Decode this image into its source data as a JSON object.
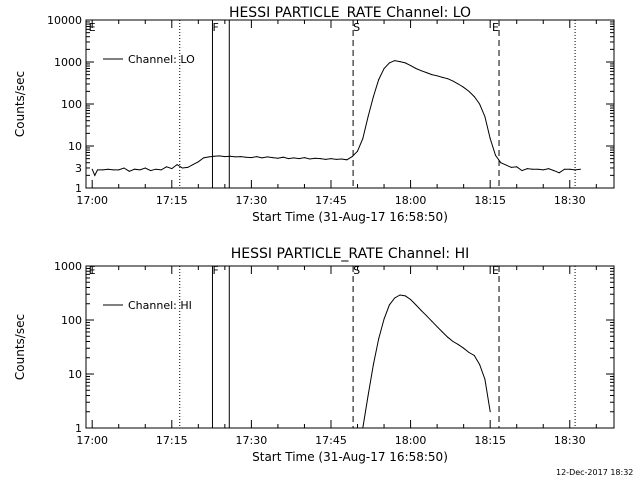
{
  "footer_date": "12-Dec-2017 18:32",
  "chart_data": [
    {
      "type": "line",
      "title": "HESSI PARTICLE_RATE Channel: LO",
      "xlabel": "Start Time (31-Aug-17 16:58:50)",
      "ylabel": "Counts/sec",
      "yscale": "log",
      "ylim": [
        1,
        10000
      ],
      "yticks": [
        1,
        10,
        100,
        1000,
        10000
      ],
      "ytick_labels": [
        "1",
        "10",
        "100",
        "1000",
        "10000"
      ],
      "minor_ytick_labels": [
        {
          "value": 3,
          "label": "3"
        }
      ],
      "xlim": [
        "16:58:50",
        "18:38:20"
      ],
      "xticks": [
        "17:00",
        "17:15",
        "17:30",
        "17:45",
        "18:00",
        "18:15",
        "18:30"
      ],
      "legend": {
        "label": "Channel: LO",
        "position": "upper-left"
      },
      "grid": false,
      "flags": [
        {
          "letter": "E",
          "time": "16:59:20"
        },
        {
          "letter": "F",
          "time": "17:22:40"
        },
        {
          "letter": "S",
          "time": "17:49:10"
        },
        {
          "letter": "E",
          "time": "18:15:20"
        }
      ],
      "vlines": [
        {
          "time": "17:16:30",
          "style": "dotted"
        },
        {
          "time": "17:22:40",
          "style": "solid"
        },
        {
          "time": "17:25:50",
          "style": "solid"
        },
        {
          "time": "17:49:10",
          "style": "dashed"
        },
        {
          "time": "18:16:40",
          "style": "dashed"
        },
        {
          "time": "18:31:00",
          "style": "dotted"
        }
      ],
      "series": [
        {
          "x": [
            "17:00:00",
            "17:00:30",
            "17:01:00",
            "17:02:00",
            "17:03:00",
            "17:04:00",
            "17:05:00",
            "17:06:00",
            "17:07:00",
            "17:08:00",
            "17:09:00",
            "17:10:00",
            "17:11:00",
            "17:12:00",
            "17:13:00",
            "17:14:00",
            "17:15:00",
            "17:16:00",
            "17:17:00",
            "17:18:00",
            "17:19:00",
            "17:20:00",
            "17:21:00",
            "17:22:00",
            "17:23:00",
            "17:24:00",
            "17:25:00",
            "17:26:00",
            "17:27:00",
            "17:28:00",
            "17:29:00",
            "17:30:00",
            "17:31:00",
            "17:32:00",
            "17:33:00",
            "17:34:00",
            "17:35:00",
            "17:36:00",
            "17:37:00",
            "17:38:00",
            "17:39:00",
            "17:40:00",
            "17:41:00",
            "17:42:00",
            "17:43:00",
            "17:44:00",
            "17:45:00",
            "17:46:00",
            "17:47:00",
            "17:48:00",
            "17:49:00",
            "17:50:00",
            "17:51:00",
            "17:52:00",
            "17:53:00",
            "17:54:00",
            "17:55:00",
            "17:56:00",
            "17:57:00",
            "17:58:00",
            "17:59:00",
            "18:00:00",
            "18:01:00",
            "18:02:00",
            "18:03:00",
            "18:04:00",
            "18:05:00",
            "18:06:00",
            "18:07:00",
            "18:08:00",
            "18:09:00",
            "18:10:00",
            "18:11:00",
            "18:12:00",
            "18:13:00",
            "18:14:00",
            "18:15:00",
            "18:16:00",
            "18:17:00",
            "18:18:00",
            "18:19:00",
            "18:20:00",
            "18:21:00",
            "18:22:00",
            "18:23:00",
            "18:24:00",
            "18:25:00",
            "18:26:00",
            "18:27:00",
            "18:28:00",
            "18:29:00",
            "18:30:00",
            "18:31:00",
            "18:32:00"
          ],
          "y": [
            2.8,
            2.0,
            2.7,
            2.7,
            2.8,
            2.7,
            2.7,
            3.0,
            2.5,
            2.8,
            2.7,
            3.0,
            2.6,
            2.8,
            2.7,
            3.2,
            2.9,
            3.6,
            3.0,
            3.1,
            3.6,
            4.2,
            5.2,
            5.5,
            5.7,
            5.8,
            5.6,
            5.7,
            5.5,
            5.6,
            5.4,
            5.3,
            5.6,
            5.2,
            5.5,
            5.3,
            5.1,
            5.4,
            5.0,
            5.2,
            5.0,
            5.3,
            4.9,
            5.1,
            5.0,
            4.8,
            5.0,
            4.8,
            4.9,
            4.7,
            5.6,
            7.5,
            15,
            50,
            150,
            380,
            700,
            950,
            1080,
            1020,
            950,
            820,
            700,
            620,
            560,
            500,
            470,
            430,
            400,
            350,
            300,
            250,
            200,
            150,
            100,
            50,
            15,
            6.0,
            4.0,
            3.5,
            3.1,
            3.2,
            2.6,
            2.9,
            2.8,
            2.8,
            2.7,
            2.9,
            2.6,
            2.3,
            2.8,
            2.8,
            2.7,
            2.8
          ]
        }
      ]
    },
    {
      "type": "line",
      "title": "HESSI PARTICLE_RATE Channel: HI",
      "xlabel": "Start Time (31-Aug-17 16:58:50)",
      "ylabel": "Counts/sec",
      "yscale": "log",
      "ylim": [
        1,
        1000
      ],
      "yticks": [
        1,
        10,
        100,
        1000
      ],
      "ytick_labels": [
        "1",
        "10",
        "100",
        "1000"
      ],
      "xlim": [
        "16:58:50",
        "18:38:20"
      ],
      "xticks": [
        "17:00",
        "17:15",
        "17:30",
        "17:45",
        "18:00",
        "18:15",
        "18:30"
      ],
      "legend": {
        "label": "Channel: HI",
        "position": "upper-left"
      },
      "grid": false,
      "flags": [
        {
          "letter": "E",
          "time": "16:59:20"
        },
        {
          "letter": "F",
          "time": "17:22:40"
        },
        {
          "letter": "S",
          "time": "17:49:10"
        },
        {
          "letter": "E",
          "time": "18:15:20"
        }
      ],
      "vlines": [
        {
          "time": "17:16:30",
          "style": "dotted"
        },
        {
          "time": "17:22:40",
          "style": "solid"
        },
        {
          "time": "17:25:50",
          "style": "solid"
        },
        {
          "time": "17:49:10",
          "style": "dashed"
        },
        {
          "time": "18:16:40",
          "style": "dashed"
        },
        {
          "time": "18:31:00",
          "style": "dotted"
        }
      ],
      "series": [
        {
          "x": [
            "17:51:00",
            "17:52:00",
            "17:53:00",
            "17:54:00",
            "17:55:00",
            "17:56:00",
            "17:57:00",
            "17:58:00",
            "17:59:00",
            "18:00:00",
            "18:01:00",
            "18:02:00",
            "18:03:00",
            "18:04:00",
            "18:05:00",
            "18:06:00",
            "18:07:00",
            "18:08:00",
            "18:09:00",
            "18:10:00",
            "18:11:00",
            "18:12:00",
            "18:13:00",
            "18:14:00",
            "18:15:00"
          ],
          "y": [
            1.0,
            4.0,
            15,
            45,
            105,
            190,
            255,
            290,
            280,
            240,
            190,
            150,
            120,
            95,
            75,
            60,
            48,
            40,
            35,
            30,
            25,
            22,
            15,
            8,
            2.0
          ]
        }
      ]
    }
  ]
}
